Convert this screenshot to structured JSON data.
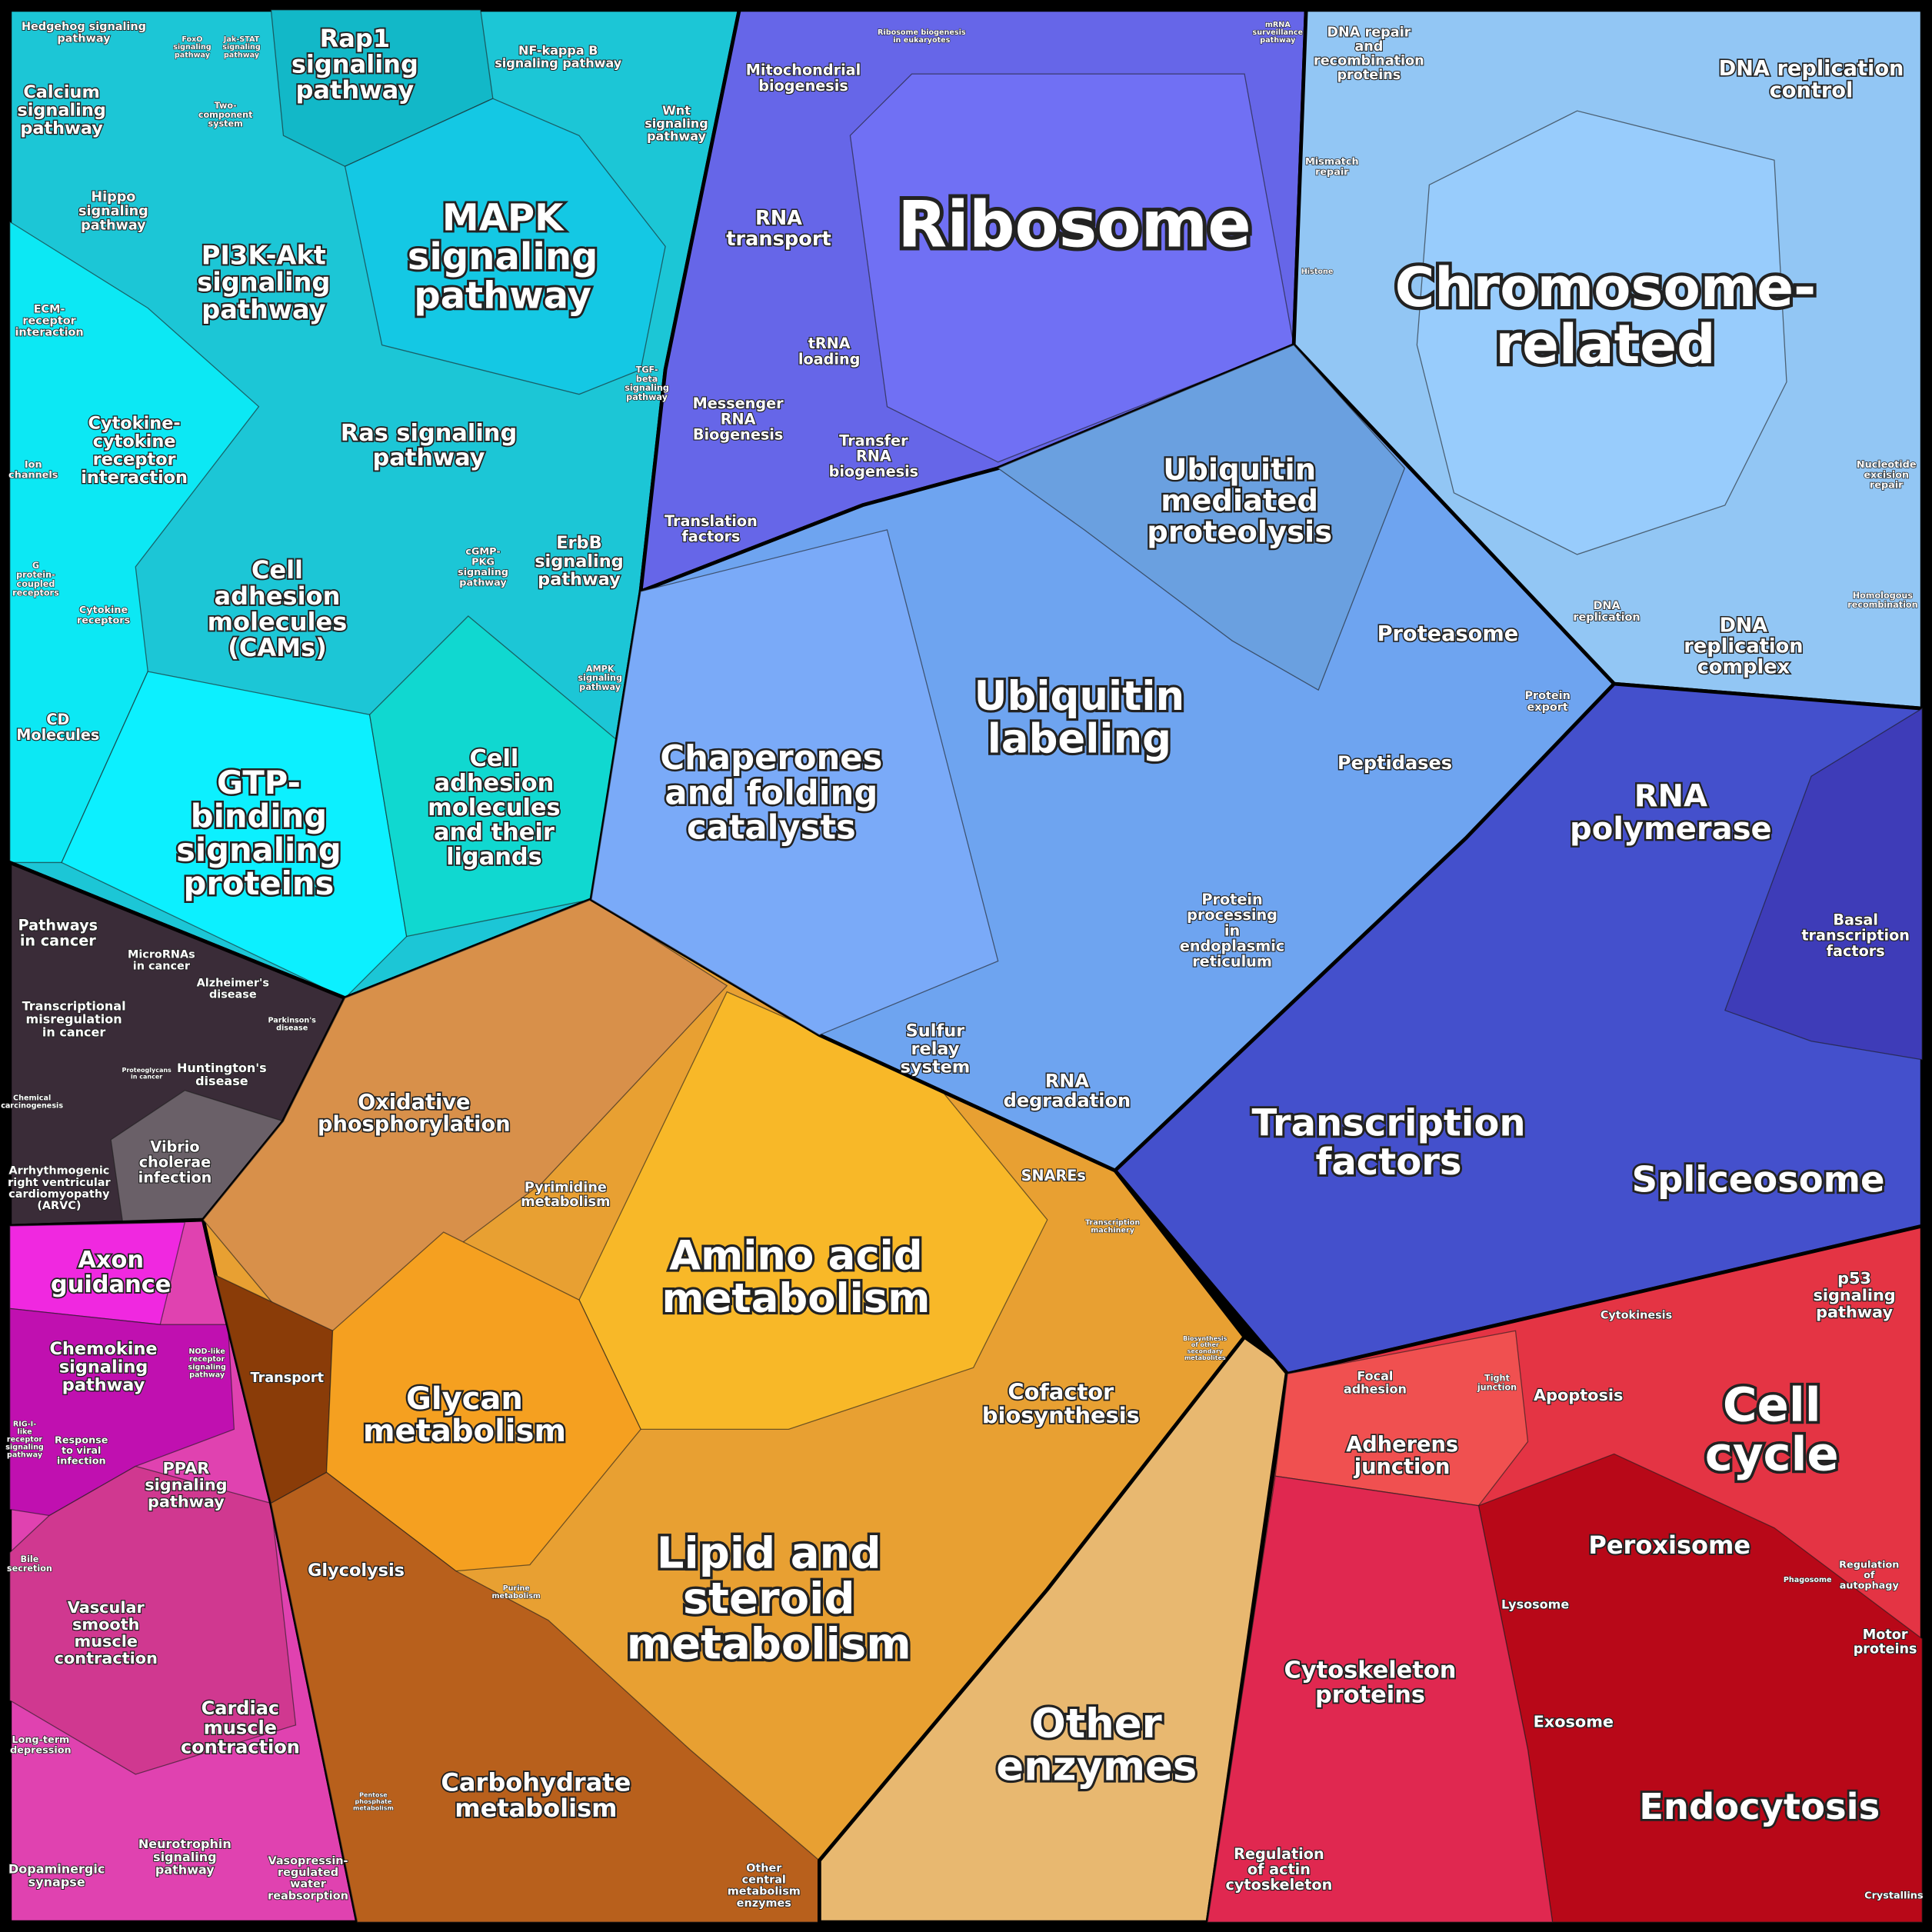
{
  "labels": [
    {
      "lines": [
        "Hedgehog signaling",
        "pathway"
      ]
    },
    {
      "lines": [
        "FoxO",
        "signaling",
        "pathway"
      ]
    },
    {
      "lines": [
        "Jak-STAT",
        "signaling",
        "pathway"
      ]
    },
    {
      "lines": [
        "Rap1",
        "signaling",
        "pathway"
      ]
    },
    {
      "lines": [
        "NF-kappa B",
        "signaling pathway"
      ]
    },
    {
      "lines": [
        "mRNA",
        "surveillance",
        "pathway"
      ]
    },
    {
      "lines": [
        "Calcium",
        "signaling",
        "pathway"
      ]
    },
    {
      "lines": [
        "Two-",
        "component",
        "system"
      ]
    },
    {
      "lines": [
        "Wnt",
        "signaling",
        "pathway"
      ]
    },
    {
      "lines": [
        "Hippo",
        "signaling",
        "pathway"
      ]
    },
    {
      "lines": [
        "MAPK",
        "signaling",
        "pathway"
      ]
    },
    {
      "lines": [
        "PI3K-Akt",
        "signaling",
        "pathway"
      ]
    },
    {
      "lines": [
        "ECM-",
        "receptor",
        "interaction"
      ]
    },
    {
      "lines": [
        "TGF-",
        "beta",
        "signaling",
        "pathway"
      ]
    },
    {
      "lines": [
        "Ras signaling",
        "pathway"
      ]
    },
    {
      "lines": [
        "Cytokine-",
        "cytokine",
        "receptor",
        "interaction"
      ]
    },
    {
      "lines": [
        "Ion",
        "channels"
      ]
    },
    {
      "lines": [
        "cGMP-",
        "PKG",
        "signaling",
        "pathway"
      ]
    },
    {
      "lines": [
        "ErbB",
        "signaling",
        "pathway"
      ]
    },
    {
      "lines": [
        "Cell",
        "adhesion",
        "molecules",
        "(CAMs)"
      ]
    },
    {
      "lines": [
        "G",
        "protein-",
        "coupled",
        "receptors"
      ]
    },
    {
      "lines": [
        "Cytokine",
        "receptors"
      ]
    },
    {
      "lines": [
        "AMPK",
        "signaling",
        "pathway"
      ]
    },
    {
      "lines": [
        "CD",
        "Molecules"
      ]
    },
    {
      "lines": [
        "GTP-",
        "binding",
        "signaling",
        "proteins"
      ]
    },
    {
      "lines": [
        "Cell",
        "adhesion",
        "molecules",
        "and their",
        "ligands"
      ]
    },
    {
      "lines": [
        "Pathways",
        "in cancer"
      ]
    },
    {
      "lines": [
        "MicroRNAs",
        "in cancer"
      ]
    },
    {
      "lines": [
        "Alzheimer's",
        "disease"
      ]
    },
    {
      "lines": [
        "Parkinson's",
        "disease"
      ]
    },
    {
      "lines": [
        "Transcriptional",
        "misregulation",
        "in cancer"
      ]
    },
    {
      "lines": [
        "Proteoglycans",
        "in cancer"
      ]
    },
    {
      "lines": [
        "Huntington's",
        "disease"
      ]
    },
    {
      "lines": [
        "Chemical",
        "carcinogenesis"
      ]
    },
    {
      "lines": [
        "Vibrio",
        "cholerae",
        "infection"
      ]
    },
    {
      "lines": [
        "Arrhythmogenic",
        "right ventricular",
        "cardiomyopathy",
        "(ARVC)"
      ]
    },
    {
      "lines": [
        "Axon",
        "guidance"
      ]
    },
    {
      "lines": [
        "Chemokine",
        "signaling",
        "pathway"
      ]
    },
    {
      "lines": [
        "NOD-like",
        "receptor",
        "signaling",
        "pathway"
      ]
    },
    {
      "lines": [
        "Transport"
      ]
    },
    {
      "lines": [
        "RIG-I-",
        "like",
        "receptor",
        "signaling",
        "pathway"
      ]
    },
    {
      "lines": [
        "Response",
        "to viral",
        "infection"
      ]
    },
    {
      "lines": [
        "PPAR",
        "signaling",
        "pathway"
      ]
    },
    {
      "lines": [
        "Bile",
        "secretion"
      ]
    },
    {
      "lines": [
        "Vascular",
        "smooth",
        "muscle",
        "contraction"
      ]
    },
    {
      "lines": [
        "Cardiac",
        "muscle",
        "contraction"
      ]
    },
    {
      "lines": [
        "Long-term",
        "depression"
      ]
    },
    {
      "lines": [
        "Neurotrophin",
        "signaling",
        "pathway"
      ]
    },
    {
      "lines": [
        "Dopaminergic",
        "synapse"
      ]
    },
    {
      "lines": [
        "Vasopressin-",
        "regulated",
        "water",
        "reabsorption"
      ]
    },
    {
      "lines": [
        "Ribosome biogenesis",
        "in eukaryotes"
      ]
    },
    {
      "lines": [
        "Mitochondrial",
        "biogenesis"
      ]
    },
    {
      "lines": [
        "Ribosome"
      ]
    },
    {
      "lines": [
        "RNA",
        "transport"
      ]
    },
    {
      "lines": [
        "tRNA",
        "loading"
      ]
    },
    {
      "lines": [
        "Messenger",
        "RNA",
        "Biogenesis"
      ]
    },
    {
      "lines": [
        "Transfer",
        "RNA",
        "biogenesis"
      ]
    },
    {
      "lines": [
        "Translation",
        "factors"
      ]
    },
    {
      "lines": [
        "DNA repair",
        "and",
        "recombination",
        "proteins"
      ]
    },
    {
      "lines": [
        "DNA replication",
        "control"
      ]
    },
    {
      "lines": [
        "Mismatch",
        "repair"
      ]
    },
    {
      "lines": [
        "Histone"
      ]
    },
    {
      "lines": [
        "Chromosome-",
        "related"
      ]
    },
    {
      "lines": [
        "Nucleotide",
        "excision",
        "repair"
      ]
    },
    {
      "lines": [
        "Homologous",
        "recombination"
      ]
    },
    {
      "lines": [
        "DNA",
        "replication"
      ]
    },
    {
      "lines": [
        "DNA",
        "replication",
        "complex"
      ]
    },
    {
      "lines": [
        "Ubiquitin",
        "mediated",
        "proteolysis"
      ]
    },
    {
      "lines": [
        "Proteasome"
      ]
    },
    {
      "lines": [
        "Protein",
        "export"
      ]
    },
    {
      "lines": [
        "Ubiquitin",
        "labeling"
      ]
    },
    {
      "lines": [
        "Chaperones",
        "and folding",
        "catalysts"
      ]
    },
    {
      "lines": [
        "Peptidases"
      ]
    },
    {
      "lines": [
        "Protein",
        "processing",
        "in",
        "endoplasmic",
        "reticulum"
      ]
    },
    {
      "lines": [
        "Sulfur",
        "relay",
        "system"
      ]
    },
    {
      "lines": [
        "RNA",
        "degradation"
      ]
    },
    {
      "lines": [
        "SNAREs"
      ]
    },
    {
      "lines": [
        "RNA",
        "polymerase"
      ]
    },
    {
      "lines": [
        "Basal",
        "transcription",
        "factors"
      ]
    },
    {
      "lines": [
        "Transcription",
        "factors"
      ]
    },
    {
      "lines": [
        "Spliceosome"
      ]
    },
    {
      "lines": [
        "Transcription",
        "machinery"
      ]
    },
    {
      "lines": [
        "Oxidative",
        "phosphorylation"
      ]
    },
    {
      "lines": [
        "Pyrimidine",
        "metabolism"
      ]
    },
    {
      "lines": [
        "Amino acid",
        "metabolism"
      ]
    },
    {
      "lines": [
        "Cofactor",
        "biosynthesis"
      ]
    },
    {
      "lines": [
        "Biosynthesis",
        "of other",
        "secondary",
        "metabolites"
      ]
    },
    {
      "lines": [
        "Glycan",
        "metabolism"
      ]
    },
    {
      "lines": [
        "Glycolysis"
      ]
    },
    {
      "lines": [
        "Purine",
        "metabolism"
      ]
    },
    {
      "lines": [
        "Lipid and",
        "steroid",
        "metabolism"
      ]
    },
    {
      "lines": [
        "Pentose",
        "phosphate",
        "metabolism"
      ]
    },
    {
      "lines": [
        "Carbohydrate",
        "metabolism"
      ]
    },
    {
      "lines": [
        "Other",
        "central",
        "metabolism",
        "enzymes"
      ]
    },
    {
      "lines": [
        "Other",
        "enzymes"
      ]
    },
    {
      "lines": [
        "Cytokinesis"
      ]
    },
    {
      "lines": [
        "p53",
        "signaling",
        "pathway"
      ]
    },
    {
      "lines": [
        "Focal",
        "adhesion"
      ]
    },
    {
      "lines": [
        "Tight",
        "junction"
      ]
    },
    {
      "lines": [
        "Apoptosis"
      ]
    },
    {
      "lines": [
        "Cell",
        "cycle"
      ]
    },
    {
      "lines": [
        "Adherens",
        "junction"
      ]
    },
    {
      "lines": [
        "Peroxisome"
      ]
    },
    {
      "lines": [
        "Phagosome"
      ]
    },
    {
      "lines": [
        "Regulation",
        "of",
        "autophagy"
      ]
    },
    {
      "lines": [
        "Lysosome"
      ]
    },
    {
      "lines": [
        "Motor",
        "proteins"
      ]
    },
    {
      "lines": [
        "Cytoskeleton",
        "proteins"
      ]
    },
    {
      "lines": [
        "Exosome"
      ]
    },
    {
      "lines": [
        "Endocytosis"
      ]
    },
    {
      "lines": [
        "Regulation",
        "of actin",
        "cytoskeleton"
      ]
    },
    {
      "lines": [
        "Crystallins"
      ]
    }
  ]
}
